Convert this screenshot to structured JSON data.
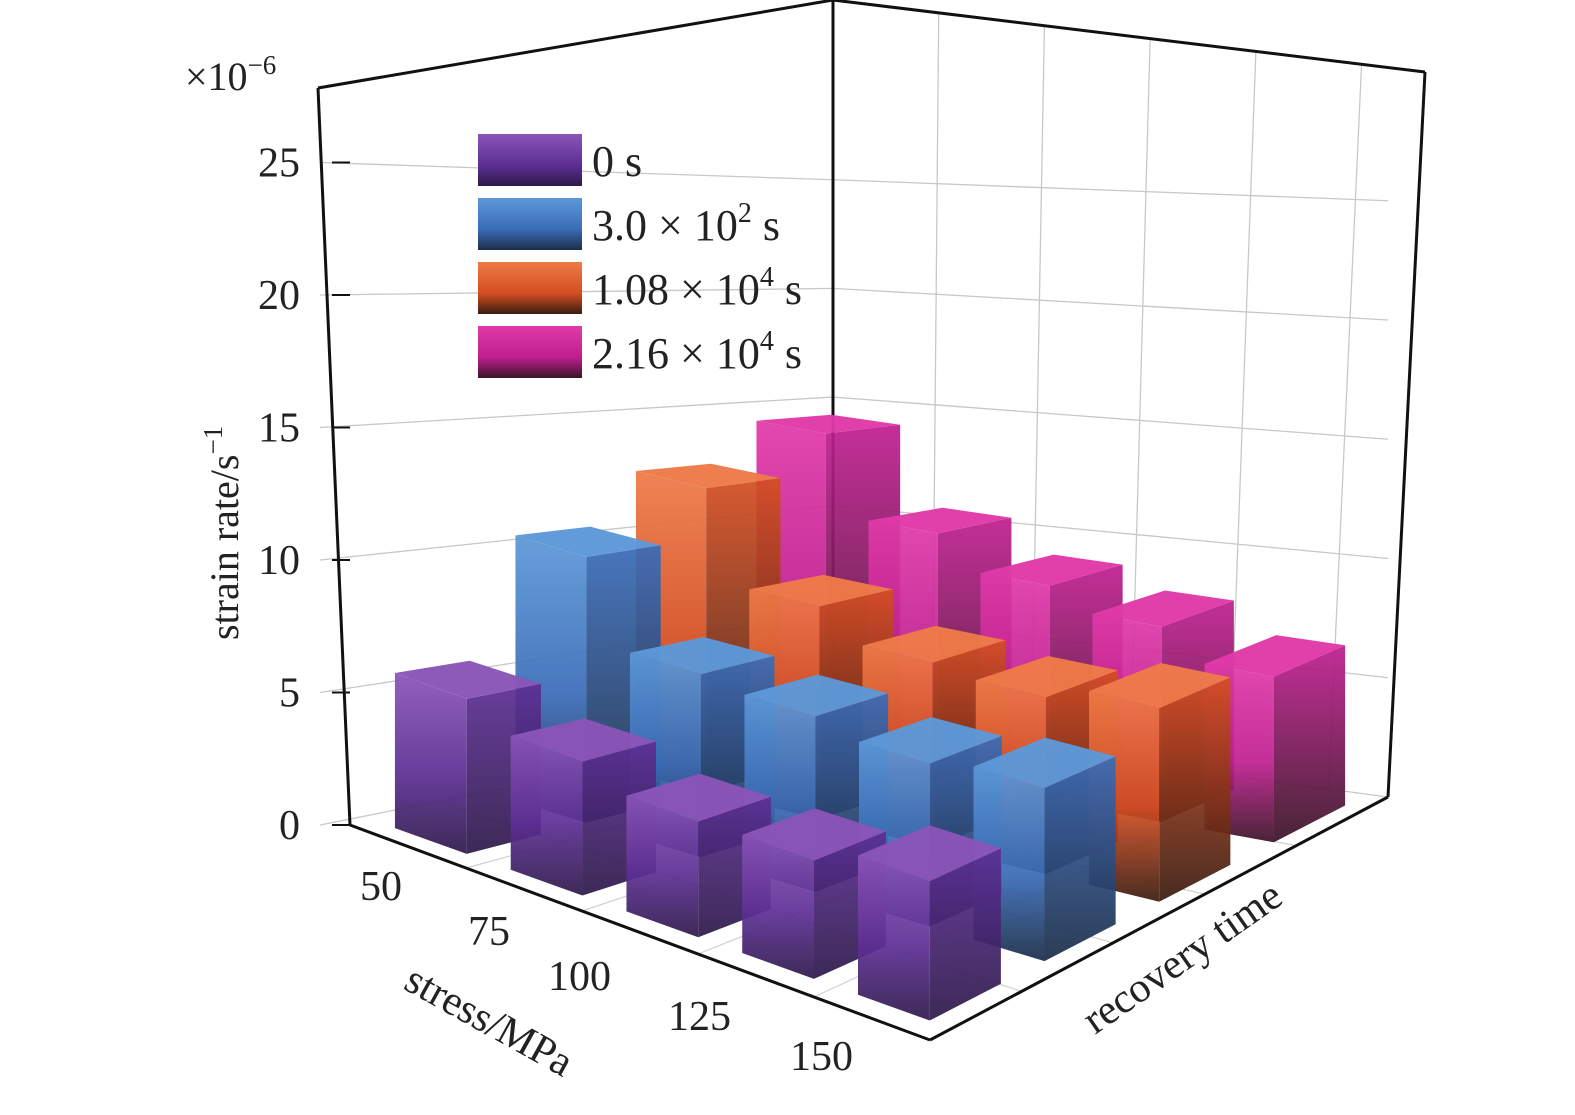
{
  "chart_data": {
    "type": "bar3d",
    "title": "",
    "multiplier_label": "×10",
    "multiplier_exponent": "−6",
    "zlabel": "strain rate/s",
    "zlabel_exponent": "−1",
    "xlabel": "stress/MPa",
    "ylabel": "recovery time",
    "zlim": [
      0,
      27
    ],
    "z_ticks": [
      "0",
      "5",
      "10",
      "15",
      "20",
      "25"
    ],
    "z_tick_values": [
      0,
      5,
      10,
      15,
      20,
      25
    ],
    "categories": [
      "50",
      "75",
      "100",
      "125",
      "150"
    ],
    "legend_position": "top-left",
    "series": [
      {
        "name_base": "0 s",
        "name_exp": "",
        "name_suffix": "",
        "top_color": "#8a55b8",
        "mid_color": "#5d2f94",
        "bottom_color": "#2e1a4a",
        "values": [
          5.9,
          5.1,
          4.4,
          4.5,
          5.3
        ]
      },
      {
        "name_base": "3.0 × 10",
        "name_exp": "2",
        "name_suffix": " s",
        "top_color": "#5c98d8",
        "mid_color": "#3a6cb8",
        "bottom_color": "#1c2d48",
        "values": [
          10.6,
          7.3,
          7.0,
          6.5,
          6.9
        ]
      },
      {
        "name_base": "1.08 × 10",
        "name_exp": "4",
        "name_suffix": " s",
        "top_color": "#ee7a48",
        "mid_color": "#d44e22",
        "bottom_color": "#3a1c10",
        "values": [
          12.7,
          8.9,
          7.7,
          7.4,
          8.1
        ]
      },
      {
        "name_base": "2.16 × 10",
        "name_exp": "4",
        "name_suffix": " s",
        "top_color": "#e03aa8",
        "mid_color": "#c01f90",
        "bottom_color": "#3a1426",
        "values": [
          14.4,
          10.9,
          9.5,
          8.6,
          7.3
        ]
      }
    ]
  }
}
